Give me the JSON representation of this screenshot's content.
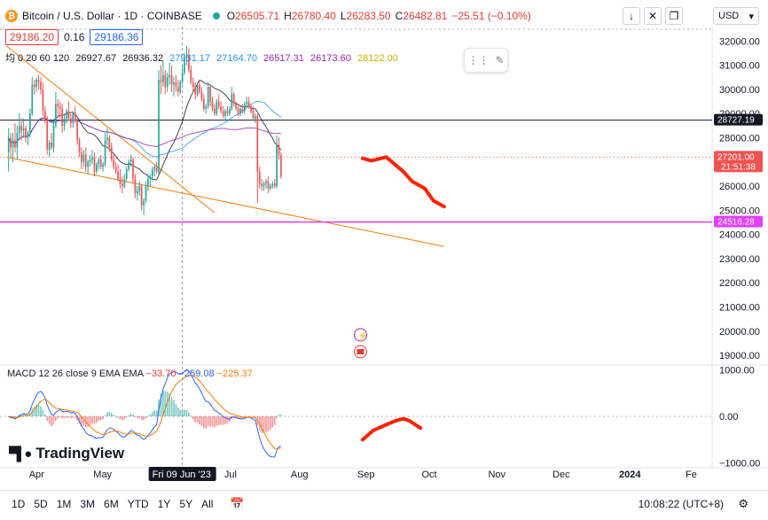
{
  "header": {
    "symbol_title": "Bitcoin / U.S. Dollar · 1D · COINBASE",
    "ohlc": [
      {
        "label": "O",
        "value": "26505.71"
      },
      {
        "label": "H",
        "value": "26780.40"
      },
      {
        "label": "L",
        "value": "26283.50"
      },
      {
        "label": "C",
        "value": "26482.81"
      }
    ],
    "change": "−25.51 (−0.10%)",
    "bid": "29186.20",
    "spread": "0.16",
    "ask": "29186.36",
    "currency": "USD"
  },
  "indicators": {
    "ma_label": "均 0 20 60 120",
    "ma_values": [
      "26927.67",
      "26936.32",
      "27931.17",
      "27164.70",
      "26517.31",
      "26173.60",
      "28122.00"
    ],
    "macd_label": "MACD 12 26 close 9 EMA EMA",
    "macd_values": [
      "−33.70",
      "−259.08",
      "−225.37"
    ]
  },
  "brand": "TradingView",
  "bottom_bar": {
    "ranges": [
      "1D",
      "5D",
      "1M",
      "3M",
      "6M",
      "YTD",
      "1Y",
      "5Y",
      "All"
    ],
    "clock": "10:08:22 (UTC+8)"
  },
  "colors": {
    "up": "#26a69a",
    "down": "#ef5350",
    "hline": "#e040fb",
    "trend": "#f57c00",
    "drawn": "#ff2200"
  },
  "chart_data": {
    "type": "candlestick",
    "title": "Bitcoin / U.S. Dollar · 1D · COINBASE",
    "x_labels": [
      "Apr",
      "May",
      "Fri 09 Jun '23",
      "Jul",
      "Aug",
      "Sep",
      "Oct",
      "Nov",
      "Dec",
      "2024",
      "Fe"
    ],
    "y_ticks": [
      19000,
      20000,
      21000,
      22000,
      23000,
      24000,
      25000,
      26000,
      27000,
      28000,
      29000,
      30000,
      31000,
      32000
    ],
    "y_tick_labels": [
      "19000.00",
      "20000.00",
      "21000.00",
      "22000.00",
      "23000.00",
      "24000.00",
      "25000.00",
      "26000.00",
      "27000.00",
      "28000.00",
      "29000.00",
      "30000.00",
      "31000.00",
      "32000.00"
    ],
    "ylim": [
      18600,
      32600
    ],
    "price_labels": [
      {
        "value": 28727.19,
        "text": "28727.19",
        "kind": "line"
      },
      {
        "value": 27201.0,
        "text": "27201.00",
        "sub": "21:51:38",
        "kind": "last"
      },
      {
        "value": 24516.28,
        "text": "24516.28",
        "kind": "hline"
      }
    ],
    "candle_start": "2023-03-20",
    "candles": [
      [
        27400,
        28400,
        26600,
        28000
      ],
      [
        28000,
        28200,
        27200,
        27600
      ],
      [
        27600,
        28200,
        27000,
        27900
      ],
      [
        27900,
        28600,
        27400,
        27600
      ],
      [
        27600,
        28500,
        27100,
        28200
      ],
      [
        28200,
        29000,
        27900,
        28500
      ],
      [
        28500,
        28800,
        27900,
        28300
      ],
      [
        28300,
        28800,
        28000,
        28400
      ],
      [
        28400,
        28500,
        27800,
        28000
      ],
      [
        28000,
        28300,
        27700,
        28200
      ],
      [
        28200,
        29200,
        28000,
        29000
      ],
      [
        29000,
        30500,
        28900,
        30200
      ],
      [
        30200,
        30400,
        29800,
        30100
      ],
      [
        30100,
        30500,
        29900,
        30400
      ],
      [
        30400,
        30600,
        30000,
        30300
      ],
      [
        30300,
        30500,
        29800,
        30000
      ],
      [
        30000,
        30300,
        28900,
        29100
      ],
      [
        29100,
        29300,
        28600,
        28800
      ],
      [
        28800,
        28900,
        27300,
        27500
      ],
      [
        27500,
        27900,
        27200,
        27800
      ],
      [
        27800,
        28200,
        27500,
        27600
      ],
      [
        27600,
        28700,
        27400,
        28500
      ],
      [
        28500,
        29900,
        28400,
        29400
      ],
      [
        29400,
        29600,
        28900,
        29300
      ],
      [
        29300,
        29500,
        28800,
        29200
      ],
      [
        29200,
        29400,
        28200,
        28500
      ],
      [
        28500,
        29000,
        28300,
        28800
      ],
      [
        28800,
        29200,
        28600,
        29100
      ],
      [
        29100,
        29500,
        28700,
        28800
      ],
      [
        28800,
        29000,
        28400,
        28600
      ],
      [
        28600,
        29100,
        28400,
        29000
      ],
      [
        29000,
        29300,
        28600,
        28700
      ],
      [
        28700,
        28800,
        27700,
        27900
      ],
      [
        27900,
        28000,
        27200,
        27400
      ],
      [
        27400,
        27600,
        26700,
        27000
      ],
      [
        27000,
        27500,
        26800,
        27300
      ],
      [
        27300,
        27600,
        26600,
        26800
      ],
      [
        26800,
        27100,
        26500,
        27000
      ],
      [
        27000,
        27300,
        26800,
        27100
      ],
      [
        27100,
        27500,
        26900,
        27200
      ],
      [
        27200,
        27400,
        26400,
        26600
      ],
      [
        26600,
        27000,
        26500,
        26900
      ],
      [
        26900,
        27200,
        26700,
        27100
      ],
      [
        27100,
        27300,
        26700,
        26800
      ],
      [
        26800,
        27000,
        26600,
        26900
      ],
      [
        26900,
        28200,
        26800,
        27900
      ],
      [
        27900,
        28400,
        27700,
        28000
      ],
      [
        28000,
        28100,
        27400,
        27600
      ],
      [
        27600,
        27800,
        27000,
        27100
      ],
      [
        27100,
        27300,
        26700,
        26800
      ],
      [
        26800,
        27000,
        26500,
        26600
      ],
      [
        26600,
        26900,
        26200,
        26300
      ],
      [
        26300,
        26700,
        25900,
        26100
      ],
      [
        26100,
        26400,
        25700,
        26000
      ],
      [
        26000,
        26500,
        25900,
        26300
      ],
      [
        26300,
        26800,
        26200,
        26700
      ],
      [
        26700,
        27100,
        26600,
        27000
      ],
      [
        27000,
        27300,
        26800,
        27100
      ],
      [
        27100,
        27200,
        26100,
        26300
      ],
      [
        26300,
        26500,
        25500,
        25700
      ],
      [
        25700,
        26000,
        25400,
        25800
      ],
      [
        25800,
        26200,
        25600,
        26000
      ],
      [
        26000,
        26100,
        25000,
        25200
      ],
      [
        25200,
        25500,
        24800,
        25400
      ],
      [
        25400,
        26200,
        25300,
        26000
      ],
      [
        26000,
        26500,
        25800,
        26300
      ],
      [
        26300,
        26500,
        26000,
        26400
      ],
      [
        26400,
        26800,
        26200,
        26700
      ],
      [
        26700,
        26900,
        26400,
        26800
      ],
      [
        26800,
        27000,
        26500,
        26600
      ],
      [
        26600,
        30800,
        26500,
        30400
      ],
      [
        30400,
        31000,
        29800,
        30300
      ],
      [
        30300,
        31200,
        30100,
        30600
      ],
      [
        30600,
        30800,
        29800,
        30100
      ],
      [
        30100,
        30700,
        29900,
        30500
      ],
      [
        30500,
        31100,
        30200,
        30600
      ],
      [
        30600,
        31000,
        29900,
        30200
      ],
      [
        30200,
        30500,
        29700,
        30300
      ],
      [
        30300,
        30600,
        29900,
        30100
      ],
      [
        30100,
        30400,
        29700,
        29900
      ],
      [
        29900,
        30400,
        29800,
        30300
      ],
      [
        30300,
        31000,
        30200,
        30700
      ],
      [
        30700,
        31500,
        30600,
        31300
      ],
      [
        31300,
        31800,
        31000,
        31400
      ],
      [
        31400,
        31700,
        30700,
        30800
      ],
      [
        30800,
        31000,
        30200,
        30300
      ],
      [
        30300,
        30500,
        29900,
        30100
      ],
      [
        30100,
        30300,
        29600,
        29800
      ],
      [
        29800,
        30300,
        29700,
        30200
      ],
      [
        30200,
        30400,
        29800,
        29900
      ],
      [
        29900,
        30100,
        29500,
        29600
      ],
      [
        29600,
        29800,
        29100,
        29200
      ],
      [
        29200,
        29400,
        29000,
        29300
      ],
      [
        29300,
        30300,
        29200,
        30100
      ],
      [
        30100,
        30200,
        29300,
        29500
      ],
      [
        29500,
        29700,
        29100,
        29200
      ],
      [
        29200,
        29400,
        28900,
        29000
      ],
      [
        29000,
        29600,
        28900,
        29500
      ],
      [
        29500,
        29800,
        29200,
        29300
      ],
      [
        29300,
        29500,
        29000,
        29100
      ],
      [
        29100,
        29300,
        28800,
        28900
      ],
      [
        28900,
        29200,
        28700,
        29100
      ],
      [
        29100,
        29300,
        28900,
        29000
      ],
      [
        29000,
        29300,
        28900,
        29200
      ],
      [
        29200,
        30100,
        29100,
        29800
      ],
      [
        29800,
        29900,
        29300,
        29400
      ],
      [
        29400,
        29500,
        29100,
        29200
      ],
      [
        29200,
        29400,
        28900,
        29000
      ],
      [
        29000,
        29300,
        28900,
        29200
      ],
      [
        29200,
        29400,
        29000,
        29100
      ],
      [
        29100,
        29500,
        29000,
        29400
      ],
      [
        29400,
        29700,
        29300,
        29500
      ],
      [
        29500,
        29700,
        29200,
        29300
      ],
      [
        29300,
        29400,
        29000,
        29100
      ],
      [
        29100,
        29300,
        28700,
        28800
      ],
      [
        28800,
        29000,
        28600,
        28900
      ],
      [
        28900,
        29000,
        25300,
        26600
      ],
      [
        26600,
        26800,
        25900,
        26100
      ],
      [
        26100,
        26300,
        25800,
        26000
      ],
      [
        26000,
        26200,
        25800,
        26100
      ],
      [
        26100,
        26300,
        25900,
        26200
      ],
      [
        26200,
        26400,
        25700,
        25900
      ],
      [
        25900,
        26100,
        25800,
        26000
      ],
      [
        26000,
        26200,
        25900,
        26100
      ],
      [
        26100,
        26300,
        25900,
        26000
      ],
      [
        26000,
        28100,
        25900,
        27700
      ],
      [
        27700,
        28000,
        27100,
        27300
      ],
      [
        27300,
        27400,
        26300,
        26400
      ]
    ],
    "ma_series": [
      {
        "name": "MA 20",
        "color": "#131722"
      },
      {
        "name": "MA 60",
        "color": "#2196f3"
      },
      {
        "name": "MA 120",
        "color": "#9c27b0"
      }
    ],
    "forecast_path": [
      [
        27150,
        "2023-09-01"
      ],
      [
        27050,
        "2023-09-05"
      ],
      [
        27200,
        "2023-09-12"
      ],
      [
        26600,
        "2023-09-20"
      ],
      [
        26200,
        "2023-09-24"
      ],
      [
        25900,
        "2023-09-30"
      ],
      [
        25400,
        "2023-10-04"
      ],
      [
        25150,
        "2023-10-09"
      ]
    ],
    "trendlines": [
      {
        "from": [
          "2023-03-19",
          31800
        ],
        "to": [
          "2023-06-24",
          24900
        ]
      },
      {
        "from": [
          "2023-03-19",
          27200
        ],
        "to": [
          "2023-10-09",
          23500
        ]
      }
    ],
    "macd": {
      "y_ticks": [
        1000,
        0,
        -1000
      ],
      "y_tick_labels": [
        "1000.00",
        "0.00",
        "−1000.00"
      ],
      "ylim": [
        -1100,
        1100
      ],
      "forecast_path": [
        [
          -500,
          "2023-09-01"
        ],
        [
          -300,
          "2023-09-06"
        ],
        [
          -200,
          "2023-09-11"
        ],
        [
          -100,
          "2023-09-16"
        ],
        [
          -50,
          "2023-09-20"
        ],
        [
          -100,
          "2023-09-23"
        ],
        [
          -250,
          "2023-09-28"
        ]
      ]
    }
  }
}
